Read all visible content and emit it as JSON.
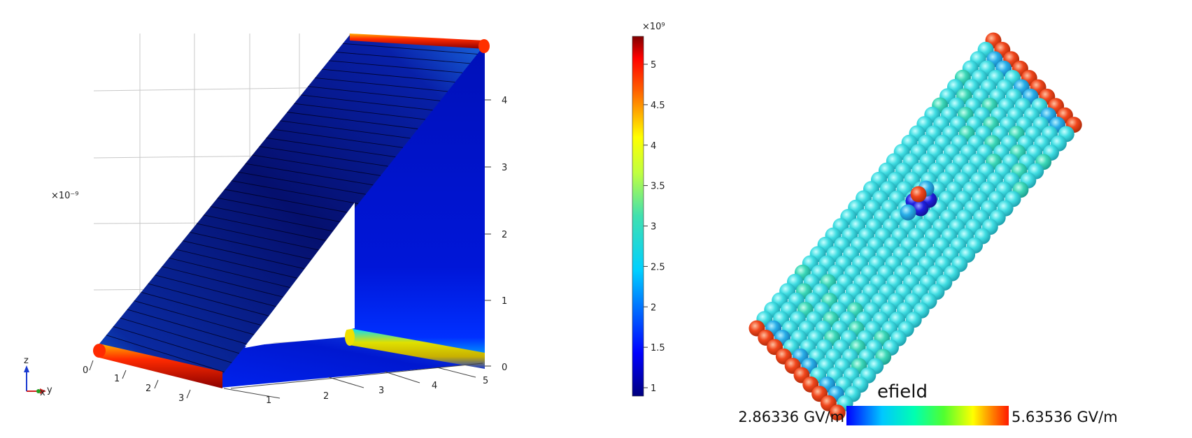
{
  "left_plot": {
    "axis_multiplier": "×10⁻⁹",
    "z_ticks": [
      "0",
      "1",
      "2",
      "3",
      "4"
    ],
    "x_ticks": [
      "0",
      "1",
      "2",
      "3"
    ],
    "y_ticks": [
      "1",
      "2",
      "3",
      "4",
      "5"
    ],
    "triad": {
      "z": "z",
      "x": "x",
      "y": "y"
    }
  },
  "colorbar": {
    "multiplier": "×10⁹",
    "ticks": [
      "5",
      "4.5",
      "4",
      "3.5",
      "3",
      "2.5",
      "2",
      "1.5",
      "1"
    ]
  },
  "right_plot": {
    "legend_title": "efield",
    "min_label": "2.86336 GV/m",
    "max_label": "5.63536 GV/m"
  },
  "colors": {
    "jet_dark_red": "#7f0000",
    "jet_red": "#ff2a00",
    "jet_yellow": "#ffff00",
    "jet_cyan": "#00e5e5",
    "jet_blue": "#0000ff",
    "jet_dark_blue": "#00007f",
    "sphere_cyan": "#3fd8e0",
    "sphere_red": "#e8401a"
  }
}
